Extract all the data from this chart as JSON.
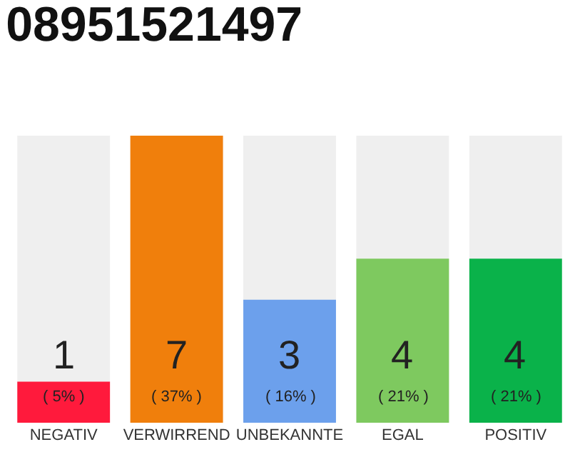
{
  "chart_data": {
    "type": "bar",
    "title": "08951521497",
    "categories": [
      "NEGATIV",
      "VERWIRREND",
      "UNBEKANNTE",
      "EGAL",
      "POSITIV"
    ],
    "values": [
      1,
      7,
      3,
      4,
      4
    ],
    "colors": [
      "#ff1a3c",
      "#f07f0c",
      "#6ca0ec",
      "#7ec95f",
      "#0ab24a"
    ],
    "value_labels": [
      "1\n( 5% )",
      "7\n( 37% )",
      "3\n( 16% )",
      "4\n( 21% )",
      "4\n( 21% )"
    ],
    "ylim": [
      0,
      7
    ],
    "tick_labels": "x",
    "grid": false,
    "legend": false
  }
}
